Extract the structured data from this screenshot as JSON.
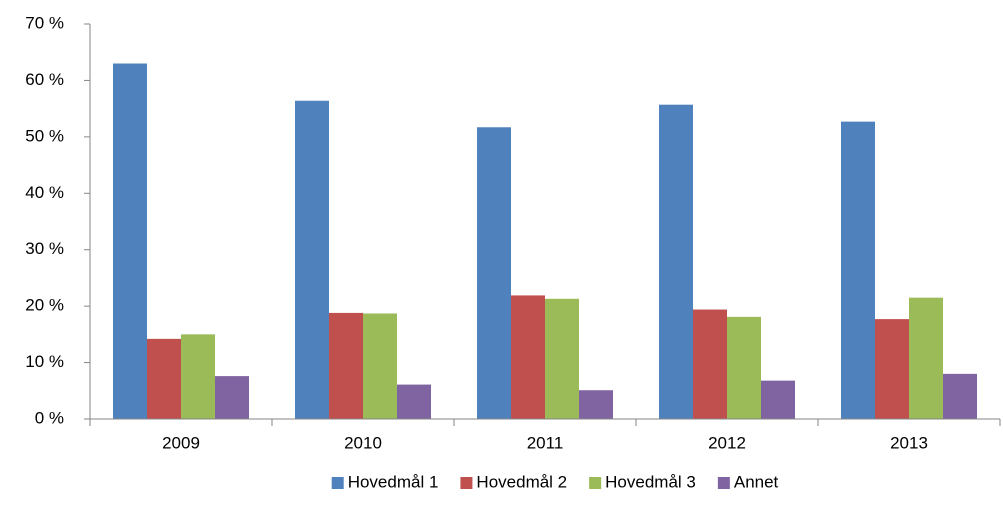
{
  "chart_data": {
    "type": "bar",
    "categories": [
      "2009",
      "2010",
      "2011",
      "2012",
      "2013"
    ],
    "series": [
      {
        "name": "Hovedmål 1",
        "color": "#4f81bd",
        "values": [
          63.0,
          56.4,
          51.7,
          55.7,
          52.7
        ]
      },
      {
        "name": "Hovedmål 2",
        "color": "#c0504d",
        "values": [
          14.2,
          18.8,
          21.9,
          19.4,
          17.7
        ]
      },
      {
        "name": "Hovedmål 3",
        "color": "#9bbb59",
        "values": [
          15.0,
          18.7,
          21.3,
          18.1,
          21.5
        ]
      },
      {
        "name": "Annet",
        "color": "#8064a2",
        "values": [
          7.6,
          6.1,
          5.1,
          6.8,
          8.0
        ]
      }
    ],
    "ylim": [
      0,
      70
    ],
    "yticks": [
      {
        "value": 0,
        "label": "0 %"
      },
      {
        "value": 10,
        "label": "10 %"
      },
      {
        "value": 20,
        "label": "20 %"
      },
      {
        "value": 30,
        "label": "30 %"
      },
      {
        "value": 40,
        "label": "40 %"
      },
      {
        "value": 50,
        "label": "50 %"
      },
      {
        "value": 60,
        "label": "60 %"
      },
      {
        "value": 70,
        "label": "70 %"
      }
    ],
    "grid": false,
    "legend": "bottom"
  }
}
